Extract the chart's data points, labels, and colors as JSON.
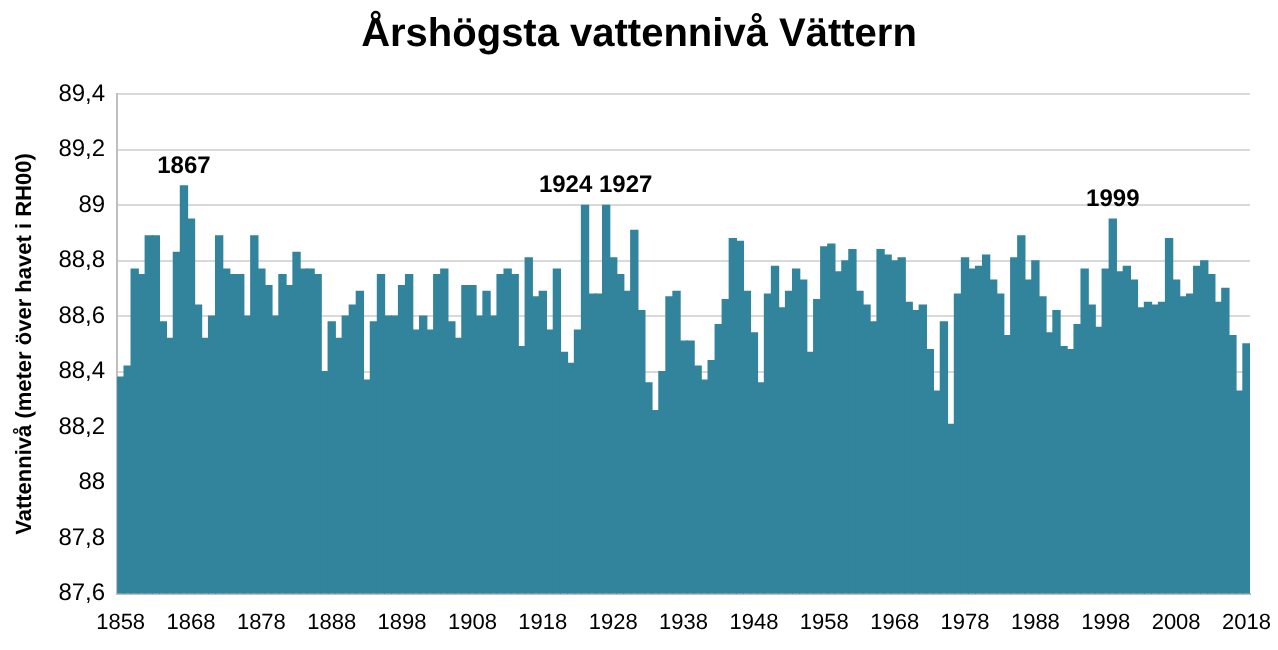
{
  "chart_data": {
    "type": "bar",
    "title": "Årshögsta vattennivå Vättern",
    "ylabel": "Vattennivå (meter över havet i RH00)",
    "color": "#31849b",
    "x": [
      1858,
      1859,
      1860,
      1861,
      1862,
      1863,
      1864,
      1865,
      1866,
      1867,
      1868,
      1869,
      1870,
      1871,
      1872,
      1873,
      1874,
      1875,
      1876,
      1877,
      1878,
      1879,
      1880,
      1881,
      1882,
      1883,
      1884,
      1885,
      1886,
      1887,
      1888,
      1889,
      1890,
      1891,
      1892,
      1893,
      1894,
      1895,
      1896,
      1897,
      1898,
      1899,
      1900,
      1901,
      1902,
      1903,
      1904,
      1905,
      1906,
      1907,
      1908,
      1909,
      1910,
      1911,
      1912,
      1913,
      1914,
      1915,
      1916,
      1917,
      1918,
      1919,
      1920,
      1921,
      1922,
      1923,
      1924,
      1925,
      1926,
      1927,
      1928,
      1929,
      1930,
      1931,
      1932,
      1933,
      1934,
      1935,
      1936,
      1937,
      1938,
      1939,
      1940,
      1941,
      1942,
      1943,
      1944,
      1945,
      1946,
      1947,
      1948,
      1949,
      1950,
      1951,
      1952,
      1953,
      1954,
      1955,
      1956,
      1957,
      1958,
      1959,
      1960,
      1961,
      1962,
      1963,
      1964,
      1965,
      1966,
      1967,
      1968,
      1969,
      1970,
      1971,
      1972,
      1973,
      1974,
      1975,
      1976,
      1977,
      1978,
      1979,
      1980,
      1981,
      1982,
      1983,
      1984,
      1985,
      1986,
      1987,
      1988,
      1989,
      1990,
      1991,
      1992,
      1993,
      1994,
      1995,
      1996,
      1997,
      1998,
      1999,
      2000,
      2001,
      2002,
      2003,
      2004,
      2005,
      2006,
      2007,
      2008,
      2009,
      2010,
      2011,
      2012,
      2013,
      2014,
      2015,
      2016,
      2017,
      2018
    ],
    "values": [
      88.38,
      88.42,
      88.77,
      88.75,
      88.89,
      88.89,
      88.58,
      88.52,
      88.83,
      89.07,
      88.95,
      88.64,
      88.52,
      88.6,
      88.89,
      88.77,
      88.75,
      88.75,
      88.6,
      88.89,
      88.77,
      88.71,
      88.6,
      88.75,
      88.71,
      88.83,
      88.77,
      88.77,
      88.75,
      88.4,
      88.58,
      88.52,
      88.6,
      88.64,
      88.69,
      88.37,
      88.58,
      88.75,
      88.6,
      88.6,
      88.71,
      88.75,
      88.55,
      88.6,
      88.55,
      88.75,
      88.77,
      88.58,
      88.52,
      88.71,
      88.71,
      88.6,
      88.69,
      88.6,
      88.75,
      88.77,
      88.75,
      88.49,
      88.81,
      88.67,
      88.69,
      88.55,
      88.77,
      88.47,
      88.43,
      88.55,
      89.0,
      88.68,
      88.68,
      89.0,
      88.81,
      88.75,
      88.69,
      88.91,
      88.62,
      88.36,
      88.26,
      88.4,
      88.67,
      88.69,
      88.51,
      88.51,
      88.42,
      88.37,
      88.44,
      88.57,
      88.66,
      88.88,
      88.87,
      88.69,
      88.54,
      88.36,
      88.68,
      88.78,
      88.63,
      88.69,
      88.77,
      88.73,
      88.47,
      88.66,
      88.85,
      88.86,
      88.76,
      88.8,
      88.84,
      88.69,
      88.64,
      88.58,
      88.84,
      88.82,
      88.8,
      88.81,
      88.65,
      88.62,
      88.64,
      88.48,
      88.33,
      88.58,
      88.21,
      88.68,
      88.81,
      88.77,
      88.78,
      88.82,
      88.73,
      88.68,
      88.53,
      88.81,
      88.89,
      88.73,
      88.8,
      88.67,
      88.54,
      88.62,
      88.49,
      88.48,
      88.57,
      88.77,
      88.64,
      88.56,
      88.77,
      88.95,
      88.76,
      88.78,
      88.73,
      88.63,
      88.65,
      88.64,
      88.65,
      88.88,
      88.73,
      88.67,
      88.68,
      88.78,
      88.8,
      88.75,
      88.65,
      88.7,
      88.53,
      88.33,
      88.5
    ],
    "xlim": [
      1857.5,
      2018.5
    ],
    "xticks": [
      1858,
      1868,
      1878,
      1888,
      1898,
      1908,
      1918,
      1928,
      1938,
      1948,
      1958,
      1968,
      1978,
      1988,
      1998,
      2008,
      2018
    ],
    "ylim": [
      87.6,
      89.4
    ],
    "yticks": [
      {
        "value": 87.6,
        "label": "87,6"
      },
      {
        "value": 87.8,
        "label": "87,8"
      },
      88,
      {
        "value": 88.2,
        "label": "88,2"
      },
      {
        "value": 88.4,
        "label": "88,4"
      },
      {
        "value": 88.6,
        "label": "88,6"
      },
      {
        "value": 88.8,
        "label": "88,8"
      },
      89,
      {
        "value": 89.2,
        "label": "89,2"
      },
      {
        "value": 89.4,
        "label": "89,4"
      }
    ],
    "grid": "y",
    "annotations": [
      {
        "text": "1867",
        "x": 1867,
        "y": 89.07
      },
      {
        "text": "1924 1927",
        "x": 1925.5,
        "y": 89.0
      },
      {
        "text": "1999",
        "x": 1999,
        "y": 88.95
      }
    ]
  }
}
